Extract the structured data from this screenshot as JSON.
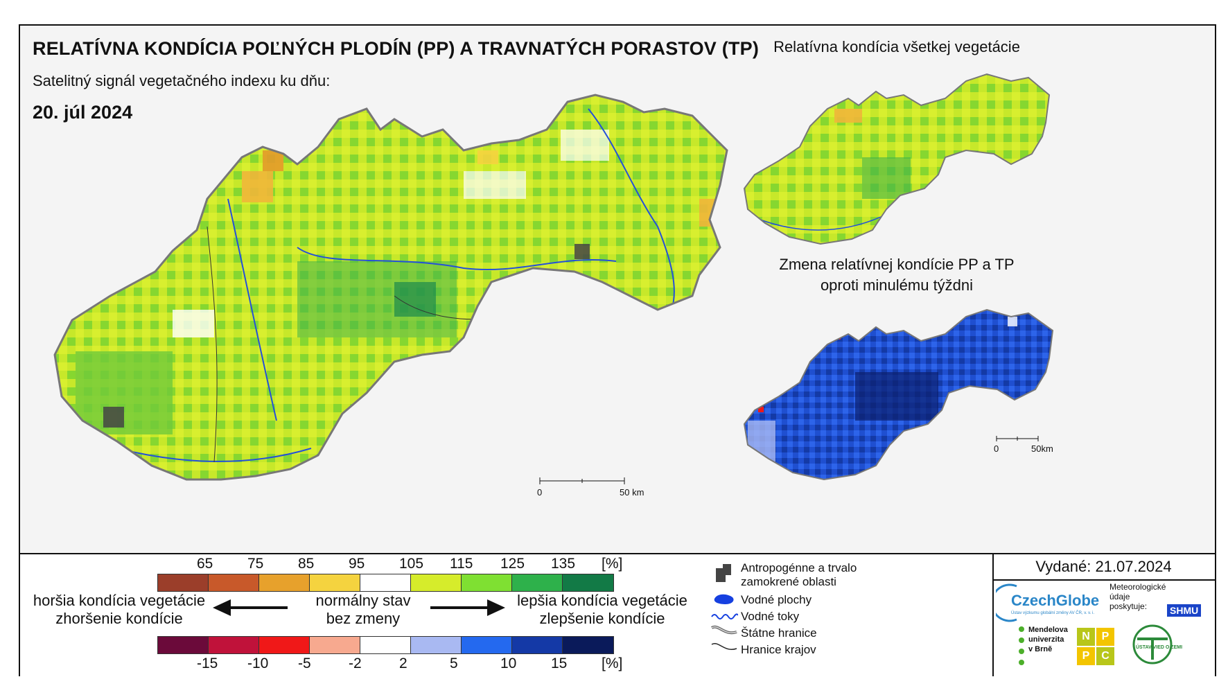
{
  "header": {
    "title": "RELATÍVNA KONDÍCIA POĽNÝCH PLODÍN (PP) A TRAVNATÝCH PORASTOV (TP)",
    "subtitle": "Satelitný signál vegetačného indexu ku dňu:",
    "date": "20. júl 2024"
  },
  "side_maps": {
    "all_vegetation_title": "Relatívna kondícia všetkej vegetácie",
    "change_title_line1": "Zmena relatívnej kondície PP a TP",
    "change_title_line2": "oproti minulému týždni"
  },
  "scale_bar": {
    "main_zero": "0",
    "main_label": "50 km",
    "small_zero": "0",
    "small_label": "50km"
  },
  "legend": {
    "condition_ticks": [
      "65",
      "75",
      "85",
      "95",
      "105",
      "115",
      "125",
      "135",
      "[%]"
    ],
    "condition_colors": [
      "#9b3e2a",
      "#c8592a",
      "#e7a12c",
      "#f5d33f",
      "#ffffff",
      "#d6ec2b",
      "#7fe032",
      "#2eb14b",
      "#127a46"
    ],
    "change_ticks": [
      "-15",
      "-10",
      "-5",
      "-2",
      "2",
      "5",
      "10",
      "15",
      "[%]"
    ],
    "change_colors": [
      "#6b0a3a",
      "#c0123a",
      "#f01818",
      "#f7a98f",
      "#ffffff",
      "#a9b9f2",
      "#2469ef",
      "#1439a6",
      "#0a1a5a"
    ],
    "worse_line1": "horšia kondícia vegetácie",
    "worse_line2": "zhoršenie kondície",
    "normal_line1": "normálny stav",
    "normal_line2": "bez zmeny",
    "better_line1": "lepšia kondícia vegetácie",
    "better_line2": "zlepšenie kondície"
  },
  "map_legend": {
    "anthropogenic_line1": "Antropogénne a trvalo",
    "anthropogenic_line2": "zamokrené oblasti",
    "water_bodies": "Vodné plochy",
    "streams": "Vodné toky",
    "state_border": "Štátne hranice",
    "region_border": "Hranice krajov"
  },
  "credits": {
    "issued": "Vydané: 21.07.2024",
    "czechglobe": "CzechGlobe",
    "czechglobe_sub": "Ústav výzkumu globální změny AV ČR, v. v. i.",
    "meteo_line1": "Meteorologické",
    "meteo_line2": "údaje",
    "meteo_line3": "poskytuje:",
    "shmu": "SHMU",
    "mendel_line1": "Mendelova",
    "mendel_line2": "univerzita",
    "mendel_line3": "v Brně",
    "nppc": [
      "N",
      "P",
      "P",
      "C"
    ],
    "uvz": "ÚSTAV VIED O ZEMI"
  }
}
